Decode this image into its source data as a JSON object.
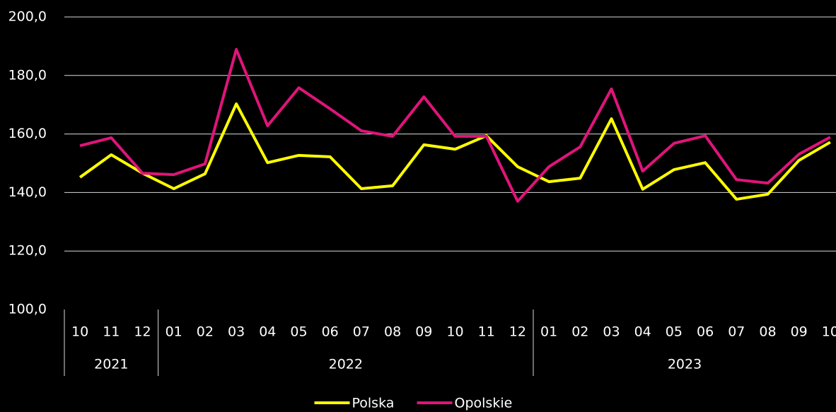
{
  "chart_data": {
    "type": "line",
    "categories": [
      "10",
      "11",
      "12",
      "01",
      "02",
      "03",
      "04",
      "05",
      "06",
      "07",
      "08",
      "09",
      "10",
      "11",
      "12",
      "01",
      "02",
      "03",
      "04",
      "05",
      "06",
      "07",
      "08",
      "09",
      "10"
    ],
    "x_groups": [
      {
        "label": "2021",
        "count": 3
      },
      {
        "label": "2022",
        "count": 12
      },
      {
        "label": "2023",
        "count": 10
      }
    ],
    "series": [
      {
        "name": "Polska",
        "color": "#ffff00",
        "values": [
          145.2,
          152.9,
          146.6,
          141.3,
          146.4,
          170.3,
          150.2,
          152.7,
          152.2,
          141.3,
          142.3,
          156.3,
          154.8,
          159.4,
          148.8,
          143.7,
          144.9,
          165.2,
          141.1,
          147.8,
          150.2,
          137.7,
          139.4,
          151.0,
          157.2
        ]
      },
      {
        "name": "Opolskie",
        "color": "#e0147a",
        "values": [
          156.0,
          158.7,
          146.6,
          146.1,
          149.8,
          188.9,
          162.8,
          175.8,
          168.6,
          161.1,
          159.2,
          172.7,
          159.2,
          159.2,
          137.0,
          148.8,
          155.6,
          175.4,
          147.3,
          156.8,
          159.4,
          144.4,
          143.2,
          153.1,
          158.9
        ]
      }
    ],
    "ylim": [
      100,
      200
    ],
    "yticks": [
      {
        "value": 100,
        "label": "100,0"
      },
      {
        "value": 120,
        "label": "120,0"
      },
      {
        "value": 140,
        "label": "140,0"
      },
      {
        "value": 160,
        "label": "160,0"
      },
      {
        "value": 180,
        "label": "180,0"
      },
      {
        "value": 200,
        "label": "200,0"
      }
    ],
    "grid": true,
    "legend": "bottom"
  }
}
